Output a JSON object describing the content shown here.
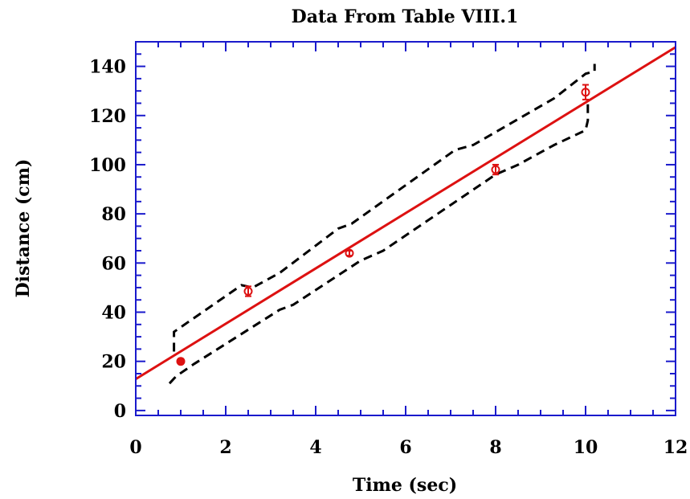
{
  "chart_data": {
    "type": "scatter",
    "title": "Data From Table VIII.1",
    "xlabel": "Time (sec)",
    "ylabel": "Distance (cm)",
    "xlim": [
      0,
      12
    ],
    "ylim": [
      -2,
      150
    ],
    "x_ticks": [
      0,
      2,
      4,
      6,
      8,
      10,
      12
    ],
    "y_ticks": [
      0,
      20,
      40,
      60,
      80,
      100,
      120,
      140
    ],
    "grid": false,
    "frame_color": "#1a1acc",
    "points": {
      "color": "#dd1111",
      "x": [
        1.0,
        2.5,
        4.75,
        8.0,
        10.0
      ],
      "y": [
        20,
        48.5,
        64,
        98,
        129.5
      ],
      "yerr": [
        1.0,
        2.0,
        1.0,
        2.0,
        3.0
      ],
      "filled": [
        true,
        false,
        false,
        false,
        false
      ]
    },
    "fit_line": {
      "color": "#dd1111",
      "slope": 11.25,
      "intercept": 12.8
    },
    "confidence_band": {
      "color": "#000000",
      "style": "dashed",
      "upper": {
        "x": [
          0.85,
          0.85,
          2.35,
          2.6,
          3.2,
          4.5,
          4.8,
          7.1,
          7.5,
          9.3,
          10.0,
          10.2,
          10.2
        ],
        "y": [
          24,
          32,
          51,
          50,
          56,
          74,
          76,
          106,
          108,
          127,
          137,
          138,
          141
        ]
      },
      "lower": {
        "x": [
          0.75,
          0.9,
          1.3,
          3.2,
          3.5,
          5.0,
          5.5,
          8.0,
          8.5,
          9.3,
          10.0,
          10.05,
          10.05
        ],
        "y": [
          11,
          14,
          19,
          41,
          43,
          61,
          65,
          96,
          100,
          108,
          114,
          118,
          126
        ]
      }
    }
  }
}
